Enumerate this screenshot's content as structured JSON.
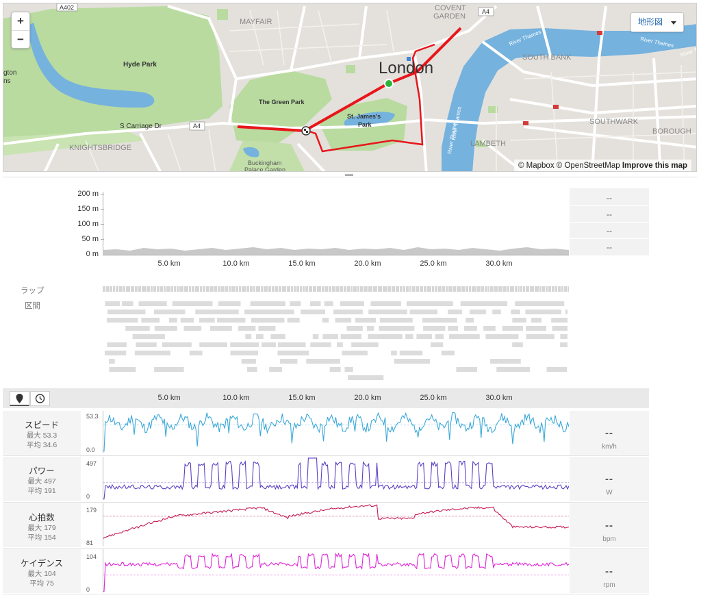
{
  "map": {
    "zoom_in": "+",
    "zoom_out": "−",
    "map_type": "地形図",
    "attribution_mapbox": "© Mapbox",
    "attribution_osm": "© OpenStreetMap",
    "attribution_improve": "Improve this map",
    "labels": {
      "a402": "A402",
      "covent1": "COVENT",
      "covent2": "GARDEN",
      "a4_top": "A4",
      "mayfair": "MAYFAIR",
      "london": "London",
      "hyde_park": "Hyde Park",
      "gton": "gton",
      "ns": "ns",
      "green_park": "The Green Park",
      "st_james1": "St. James's",
      "st_james2": "Park",
      "s_carriage": "S Carriage Dr",
      "a4_left": "A4",
      "knightsbridge": "KNIGHTSBRIDGE",
      "buck1": "Buckingham",
      "buck2": "Palace Garden",
      "south_bank": "SOUTH BANK",
      "southwark": "SOUTHWARK",
      "borough": "BOROUGH",
      "lambeth": "LAMBETH",
      "river1": "River Thames",
      "river2": "River Thames",
      "river3": "River Tha",
      "river4": "River Thames",
      "river5": "River Thames"
    }
  },
  "elevation": {
    "y_ticks": [
      "200 m",
      "150 m",
      "100 m",
      "50 m",
      "0 m"
    ],
    "x_ticks": [
      "5.0 km",
      "10.0 km",
      "15.0 km",
      "20.0 km",
      "25.0 km",
      "30.0 km"
    ],
    "side_values": [
      "--",
      "--",
      "--",
      "--"
    ]
  },
  "laps": {
    "lap_label": "ラップ",
    "segment_label": "区間"
  },
  "toolbar": {
    "x_ticks": [
      "5.0 km",
      "10.0 km",
      "15.0 km",
      "20.0 km",
      "25.0 km",
      "30.0 km"
    ],
    "map_icon": "map-pin-icon",
    "clock_icon": "clock-icon"
  },
  "metrics": [
    {
      "name": "スピード",
      "max": "最大 53.3",
      "avg": "平均 34.6",
      "top": "53.3",
      "bottom": "0.0",
      "value": "--",
      "unit": "km/h",
      "color": "#3aa8d8"
    },
    {
      "name": "パワー",
      "max": "最大 497",
      "avg": "平均 191",
      "top": "497",
      "bottom": "0",
      "value": "--",
      "unit": "W",
      "color": "#5b3fc4"
    },
    {
      "name": "心拍数",
      "max": "最大 179",
      "avg": "平均 154",
      "top": "179",
      "bottom": "81",
      "value": "--",
      "unit": "bpm",
      "color": "#c41a55"
    },
    {
      "name": "ケイデンス",
      "max": "最大 104",
      "avg": "平均 75",
      "top": "104",
      "bottom": "0",
      "value": "--",
      "unit": "rpm",
      "color": "#e022d8"
    }
  ]
}
